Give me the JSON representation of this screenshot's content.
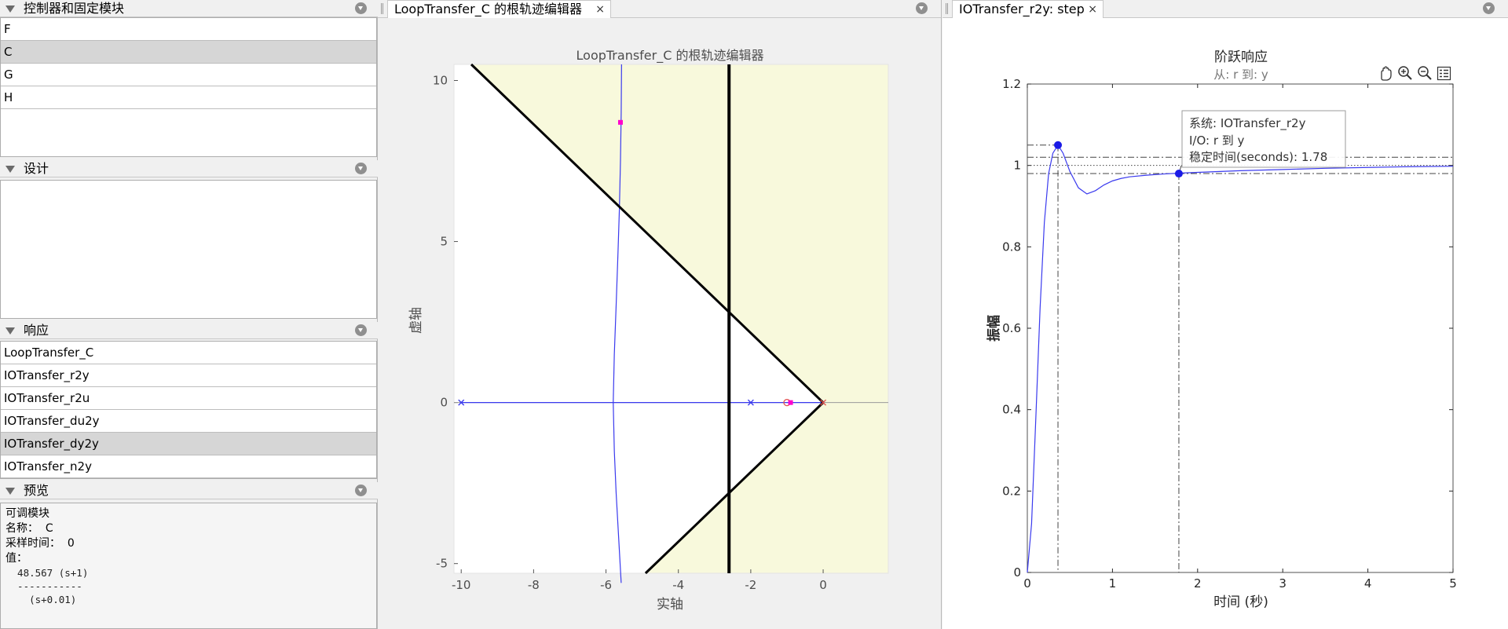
{
  "left_panel": {
    "blocks_section": {
      "title": "控制器和固定模块",
      "items": [
        "F",
        "C",
        "G",
        "H"
      ],
      "selected": "C"
    },
    "design_section": {
      "title": "设计"
    },
    "responses_section": {
      "title": "响应",
      "items": [
        "LoopTransfer_C",
        "IOTransfer_r2y",
        "IOTransfer_r2u",
        "IOTransfer_du2y",
        "IOTransfer_dy2y",
        "IOTransfer_n2y"
      ],
      "selected": "IOTransfer_dy2y"
    },
    "preview_section": {
      "title": "预览",
      "line1": "可调模块",
      "line2": "名称：  C",
      "line3": "采样时间：  0",
      "line4": "值：",
      "numerator": "  48.567 (s+1)",
      "divider": "  -----------",
      "denominator": "    (s+0.01)"
    }
  },
  "root_locus_doc": {
    "tab_label": "LoopTransfer_C 的根轨迹编辑器",
    "close_label": "×",
    "plot_title": "LoopTransfer_C 的根轨迹编辑器",
    "xlabel": "实轴",
    "ylabel": "虚轴",
    "xticks": [
      "-10",
      "-8",
      "-6",
      "-4",
      "-2",
      "0"
    ],
    "yticks": [
      "10",
      "5",
      "0",
      "-5"
    ],
    "colors": {
      "region": "#f8f9dc",
      "locus": "#3a3aee",
      "pole_marker": "#ff00cc",
      "constraint": "#000000"
    }
  },
  "step_doc": {
    "tab_label": "IOTransfer_r2y: step",
    "close_label": "×",
    "plot_title": "阶跃响应",
    "plot_subtitle": "从: r  到: y",
    "xlabel": "时间 (秒)",
    "ylabel": "振幅",
    "tooltip": {
      "line1": "系统:  IOTransfer_r2y",
      "line2": "I/O:  r  到  y",
      "line3": "稳定时间(seconds):  1.78"
    },
    "toolbar_icons": [
      "pan-icon",
      "zoom-in-icon",
      "zoom-out-icon",
      "legend-icon"
    ]
  },
  "chart_data": [
    {
      "type": "line",
      "title": "LoopTransfer_C 的根轨迹编辑器",
      "xlabel": "实轴",
      "ylabel": "虚轴",
      "xlim": [
        -10.2,
        1.8
      ],
      "ylim": [
        -5.3,
        10.5
      ],
      "xticks": [
        -10,
        -8,
        -6,
        -4,
        -2,
        0
      ],
      "yticks": [
        -5,
        0,
        5,
        10
      ],
      "open_loop_poles": [
        [
          -10,
          0
        ],
        [
          -2,
          0
        ],
        [
          0,
          0
        ]
      ],
      "open_loop_zeros": [
        [
          -1,
          0
        ]
      ],
      "closed_loop_poles": [
        [
          -5.6,
          8.7
        ],
        [
          -0.9,
          0
        ]
      ],
      "constraints": {
        "settling_time_line_x": -2.6,
        "damping_slope": 1.08
      },
      "series": [
        {
          "x": [
            -10,
            0
          ],
          "y": [
            0,
            0
          ]
        },
        {
          "x": [
            -5.8,
            -5.77,
            -5.72,
            -5.67,
            -5.63,
            -5.6,
            -5.58
          ],
          "y": [
            0,
            -1.5,
            -2.8,
            -3.8,
            -4.6,
            -5.2,
            -5.6
          ]
        },
        {
          "x": [
            -5.8,
            -5.77,
            -5.72,
            -5.67,
            -5.63,
            -5.6,
            -5.58,
            -5.57
          ],
          "y": [
            0,
            1.5,
            3,
            4.6,
            6,
            7.5,
            9,
            10.5
          ]
        }
      ]
    },
    {
      "type": "line",
      "title": "阶跃响应",
      "subtitle": "从: r  到: y",
      "xlabel": "时间 (秒)",
      "ylabel": "振幅",
      "xlim": [
        0,
        5
      ],
      "ylim": [
        0,
        1.2
      ],
      "xticks": [
        0,
        1,
        2,
        3,
        4,
        5
      ],
      "yticks": [
        0,
        0.2,
        0.4,
        0.6,
        0.8,
        1,
        1.2
      ],
      "peak": [
        0.36,
        1.05
      ],
      "settling_point": [
        1.78,
        0.98
      ],
      "settling_band": [
        0.98,
        1.02
      ],
      "series": [
        {
          "x": [
            0,
            0.05,
            0.1,
            0.15,
            0.2,
            0.25,
            0.3,
            0.36,
            0.42,
            0.5,
            0.6,
            0.7,
            0.8,
            0.9,
            1.0,
            1.1,
            1.2,
            1.4,
            1.6,
            1.78,
            2.0,
            2.5,
            3.0,
            3.5,
            4.0,
            4.5,
            5.0
          ],
          "y": [
            0,
            0.12,
            0.38,
            0.65,
            0.86,
            0.98,
            1.03,
            1.05,
            1.03,
            0.985,
            0.945,
            0.93,
            0.938,
            0.952,
            0.962,
            0.968,
            0.972,
            0.976,
            0.979,
            0.981,
            0.983,
            0.987,
            0.99,
            0.993,
            0.995,
            0.997,
            0.998
          ]
        }
      ]
    }
  ]
}
